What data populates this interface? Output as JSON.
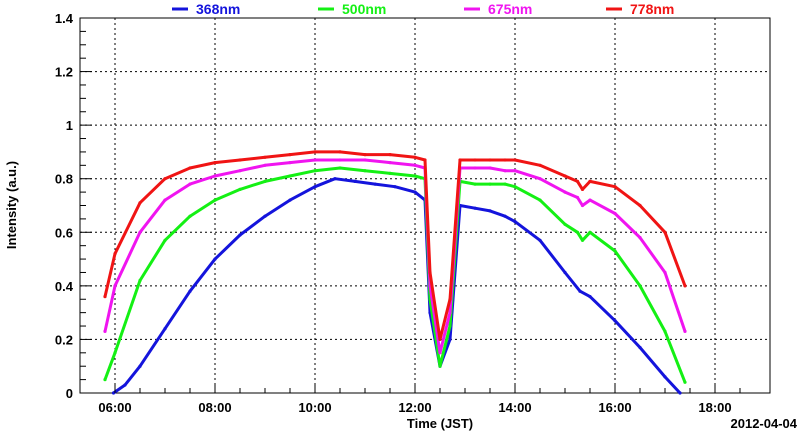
{
  "chart_data": {
    "type": "line",
    "title": "",
    "xlabel": "Time (JST)",
    "ylabel": "Intensity (a.u.)",
    "date_label": "2012-04-04",
    "x_unit": "hour (JST)",
    "xlim": [
      5.3,
      19.1
    ],
    "ylim": [
      0,
      1.4
    ],
    "x_ticks": [
      6,
      8,
      10,
      12,
      14,
      16,
      18
    ],
    "x_tick_labels": [
      "06:00",
      "08:00",
      "10:00",
      "12:00",
      "14:00",
      "16:00",
      "18:00"
    ],
    "y_ticks": [
      0,
      0.2,
      0.4,
      0.6,
      0.8,
      1,
      1.2,
      1.4
    ],
    "y_tick_labels": [
      "0",
      "0.2",
      "0.4",
      "0.6",
      "0.8",
      "1",
      "1.2",
      "1.4"
    ],
    "grid": true,
    "legend_position": "top",
    "series": [
      {
        "name": "368nm",
        "color": "#1414dc",
        "x": [
          5.97,
          6.2,
          6.5,
          7.0,
          7.5,
          8.0,
          8.5,
          9.0,
          9.5,
          10.0,
          10.4,
          10.8,
          11.2,
          11.6,
          12.0,
          12.2,
          12.3,
          12.5,
          12.7,
          12.9,
          13.2,
          13.5,
          13.8,
          14.0,
          14.5,
          15.0,
          15.3,
          15.5,
          16.0,
          16.5,
          17.0,
          17.3
        ],
        "y": [
          0.0,
          0.03,
          0.1,
          0.24,
          0.38,
          0.5,
          0.59,
          0.66,
          0.72,
          0.77,
          0.8,
          0.79,
          0.78,
          0.77,
          0.75,
          0.72,
          0.3,
          0.1,
          0.2,
          0.7,
          0.69,
          0.68,
          0.66,
          0.64,
          0.57,
          0.45,
          0.38,
          0.36,
          0.27,
          0.17,
          0.06,
          0.0
        ]
      },
      {
        "name": "500nm",
        "color": "#14f014",
        "x": [
          5.8,
          6.0,
          6.5,
          7.0,
          7.5,
          8.0,
          8.5,
          9.0,
          9.5,
          10.0,
          10.5,
          11.0,
          11.5,
          12.0,
          12.2,
          12.3,
          12.5,
          12.7,
          12.9,
          13.2,
          13.5,
          13.8,
          14.0,
          14.5,
          15.0,
          15.25,
          15.35,
          15.5,
          16.0,
          16.5,
          17.0,
          17.4
        ],
        "y": [
          0.05,
          0.15,
          0.42,
          0.57,
          0.66,
          0.72,
          0.76,
          0.79,
          0.81,
          0.83,
          0.84,
          0.83,
          0.82,
          0.81,
          0.8,
          0.35,
          0.1,
          0.25,
          0.79,
          0.78,
          0.78,
          0.78,
          0.77,
          0.72,
          0.63,
          0.6,
          0.57,
          0.6,
          0.53,
          0.4,
          0.23,
          0.04
        ]
      },
      {
        "name": "675nm",
        "color": "#f014f0",
        "x": [
          5.8,
          6.0,
          6.5,
          7.0,
          7.5,
          8.0,
          8.5,
          9.0,
          9.5,
          10.0,
          10.5,
          11.0,
          11.5,
          12.0,
          12.2,
          12.3,
          12.5,
          12.7,
          12.9,
          13.2,
          13.5,
          13.8,
          14.0,
          14.5,
          15.0,
          15.25,
          15.35,
          15.5,
          16.0,
          16.5,
          17.0,
          17.4
        ],
        "y": [
          0.23,
          0.4,
          0.6,
          0.72,
          0.78,
          0.81,
          0.83,
          0.85,
          0.86,
          0.87,
          0.87,
          0.87,
          0.86,
          0.85,
          0.84,
          0.4,
          0.15,
          0.3,
          0.84,
          0.84,
          0.84,
          0.83,
          0.83,
          0.8,
          0.75,
          0.73,
          0.7,
          0.72,
          0.67,
          0.58,
          0.45,
          0.23
        ]
      },
      {
        "name": "778nm",
        "color": "#f01414",
        "x": [
          5.8,
          6.0,
          6.5,
          7.0,
          7.5,
          8.0,
          8.5,
          9.0,
          9.5,
          10.0,
          10.5,
          11.0,
          11.5,
          12.0,
          12.2,
          12.3,
          12.5,
          12.7,
          12.9,
          13.2,
          13.5,
          13.8,
          14.0,
          14.5,
          15.0,
          15.25,
          15.35,
          15.5,
          16.0,
          16.5,
          17.0,
          17.4
        ],
        "y": [
          0.36,
          0.52,
          0.71,
          0.8,
          0.84,
          0.86,
          0.87,
          0.88,
          0.89,
          0.9,
          0.9,
          0.89,
          0.89,
          0.88,
          0.87,
          0.45,
          0.2,
          0.35,
          0.87,
          0.87,
          0.87,
          0.87,
          0.87,
          0.85,
          0.81,
          0.79,
          0.76,
          0.79,
          0.77,
          0.7,
          0.6,
          0.4
        ]
      }
    ]
  }
}
